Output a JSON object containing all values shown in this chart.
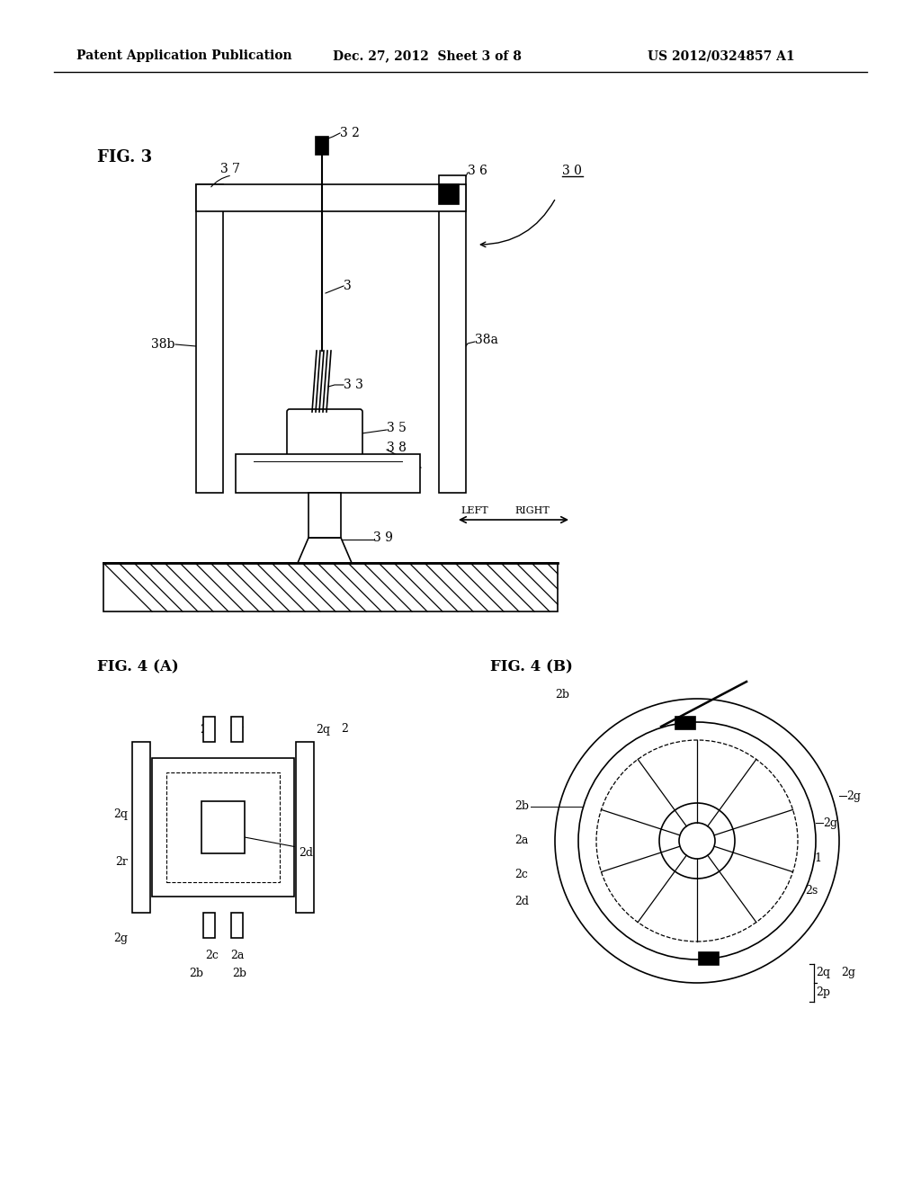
{
  "bg_color": "#ffffff",
  "header_text": "Patent Application Publication",
  "header_date": "Dec. 27, 2012  Sheet 3 of 8",
  "header_patent": "US 2012/0324857 A1",
  "line_color": "#000000"
}
